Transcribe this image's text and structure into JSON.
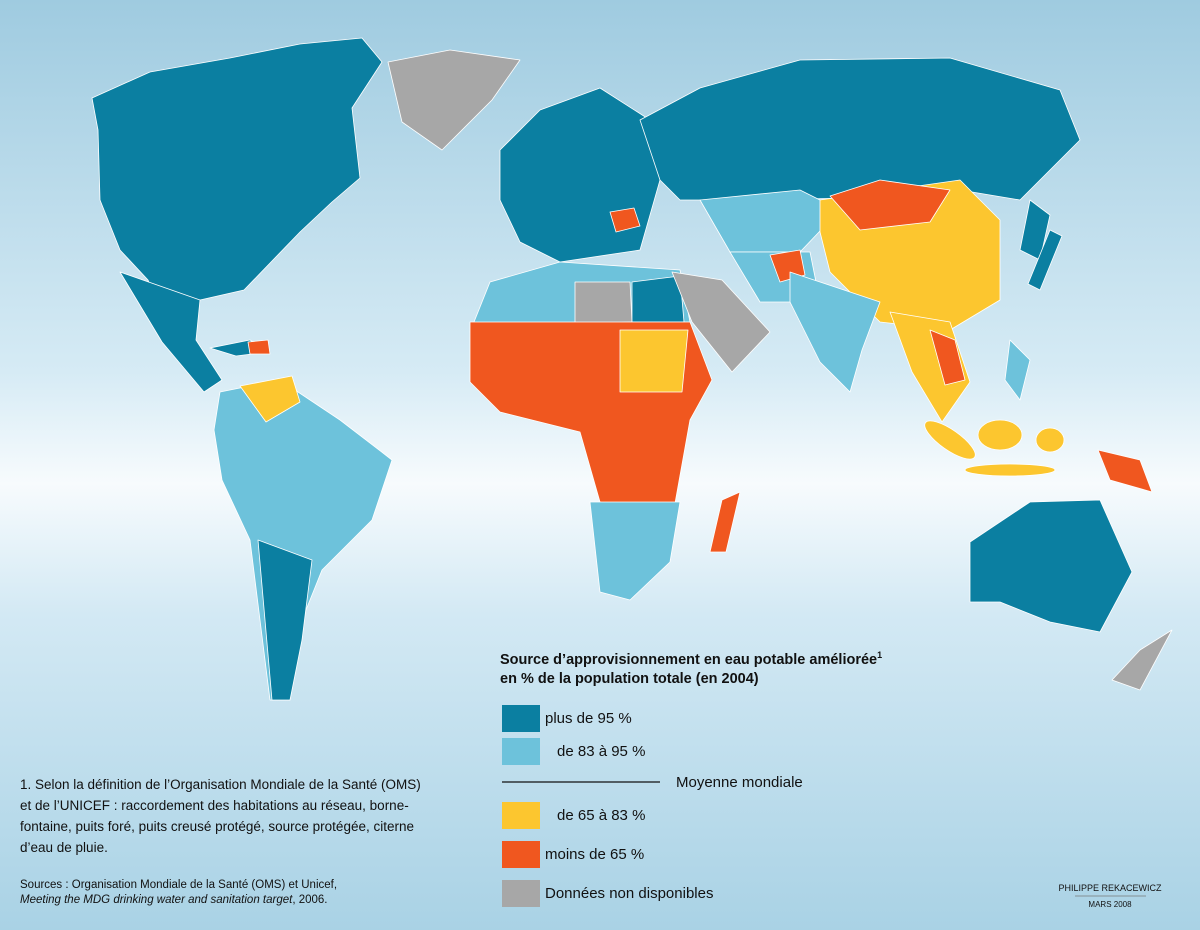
{
  "legend": {
    "title_line1": "Source d’approvisionnement en eau potable améliorée",
    "title_sup": "1",
    "title_line2": "en % de la population totale (en 2004)",
    "items": [
      {
        "label": "plus de 95 %",
        "color": "#0b7fa1"
      },
      {
        "label": "de 83 à 95 %",
        "color": "#6dc2db"
      },
      {
        "label": "de 65 à 83 %",
        "color": "#fcc62f"
      },
      {
        "label": "moins de 65 %",
        "color": "#f0571f"
      },
      {
        "label": "Données non disponibles",
        "color": "#a7a7a7"
      }
    ],
    "average_label": "Moyenne mondiale"
  },
  "footnote": {
    "lines": [
      "1. Selon la définition de l’Organisation Mondiale de la Santé (OMS)",
      "et de l’UNICEF : raccordement des habitations au réseau, borne-",
      "fontaine, puits foré, puits creusé protégé, source protégée, citerne",
      "d’eau de pluie."
    ]
  },
  "sources": {
    "line1": "Sources : Organisation Mondiale de la Santé (OMS) et Unicef,",
    "line2_italic": "Meeting the MDG drinking water and sanitation target",
    "line2_rest": ", 2006."
  },
  "credit": {
    "author": "PHILIPPE REKACEWICZ",
    "date": "MARS 2008"
  }
}
